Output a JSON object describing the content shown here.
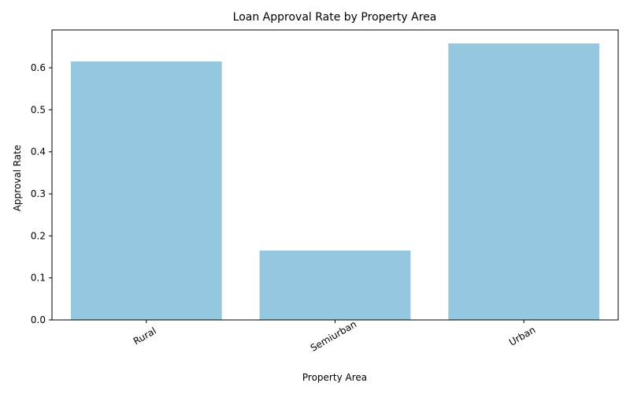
{
  "chart_data": {
    "type": "bar",
    "title": "Loan Approval Rate by Property Area",
    "xlabel": "Property Area",
    "ylabel": "Approval Rate",
    "categories": [
      "Rural",
      "Semiurban",
      "Urban"
    ],
    "values": [
      0.615,
      0.165,
      0.658
    ],
    "ylim": [
      0,
      0.69
    ],
    "yticks": [
      "0.0",
      "0.1",
      "0.2",
      "0.3",
      "0.4",
      "0.5",
      "0.6"
    ],
    "bar_color": "#95c8de",
    "grid": false,
    "legend": false
  }
}
